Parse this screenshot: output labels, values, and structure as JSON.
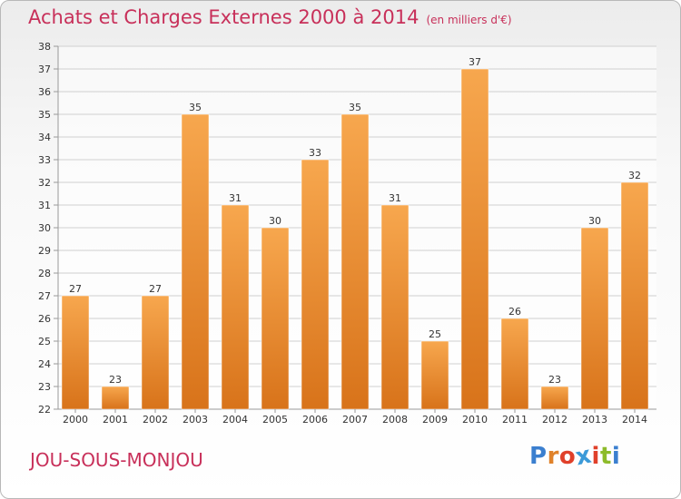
{
  "title": "Achats et Charges Externes 2000 à 2014",
  "subtitle": "(en milliers d'€)",
  "commune": "JOU-SOUS-MONJOU",
  "brand": {
    "text": "Proxiti",
    "letter_colors": [
      "#3b7fcf",
      "#e0822a",
      "#e0402a",
      "#3b9ad8",
      "#e0402a",
      "#8dbb2a",
      "#3b7fcf"
    ]
  },
  "colors": {
    "accent": "#c8305a",
    "bar_light": "#f7a74e",
    "bar_dark": "#d8731a",
    "grid": "#d0d0d0",
    "tick_text": "#333333"
  },
  "chart_data": {
    "type": "bar",
    "categories": [
      "2000",
      "2001",
      "2002",
      "2003",
      "2004",
      "2005",
      "2006",
      "2007",
      "2008",
      "2009",
      "2010",
      "2011",
      "2012",
      "2013",
      "2014"
    ],
    "values": [
      27,
      23,
      27,
      35,
      31,
      30,
      33,
      35,
      31,
      25,
      37,
      26,
      23,
      30,
      32
    ],
    "title": "Achats et Charges Externes 2000 à 2014",
    "subtitle": "(en milliers d'€)",
    "xlabel": "",
    "ylabel": "",
    "ylim": [
      22,
      38
    ],
    "yticks": [
      22,
      23,
      24,
      25,
      26,
      27,
      28,
      29,
      30,
      31,
      32,
      33,
      34,
      35,
      36,
      37,
      38
    ],
    "grid": true,
    "data_labels": true
  }
}
